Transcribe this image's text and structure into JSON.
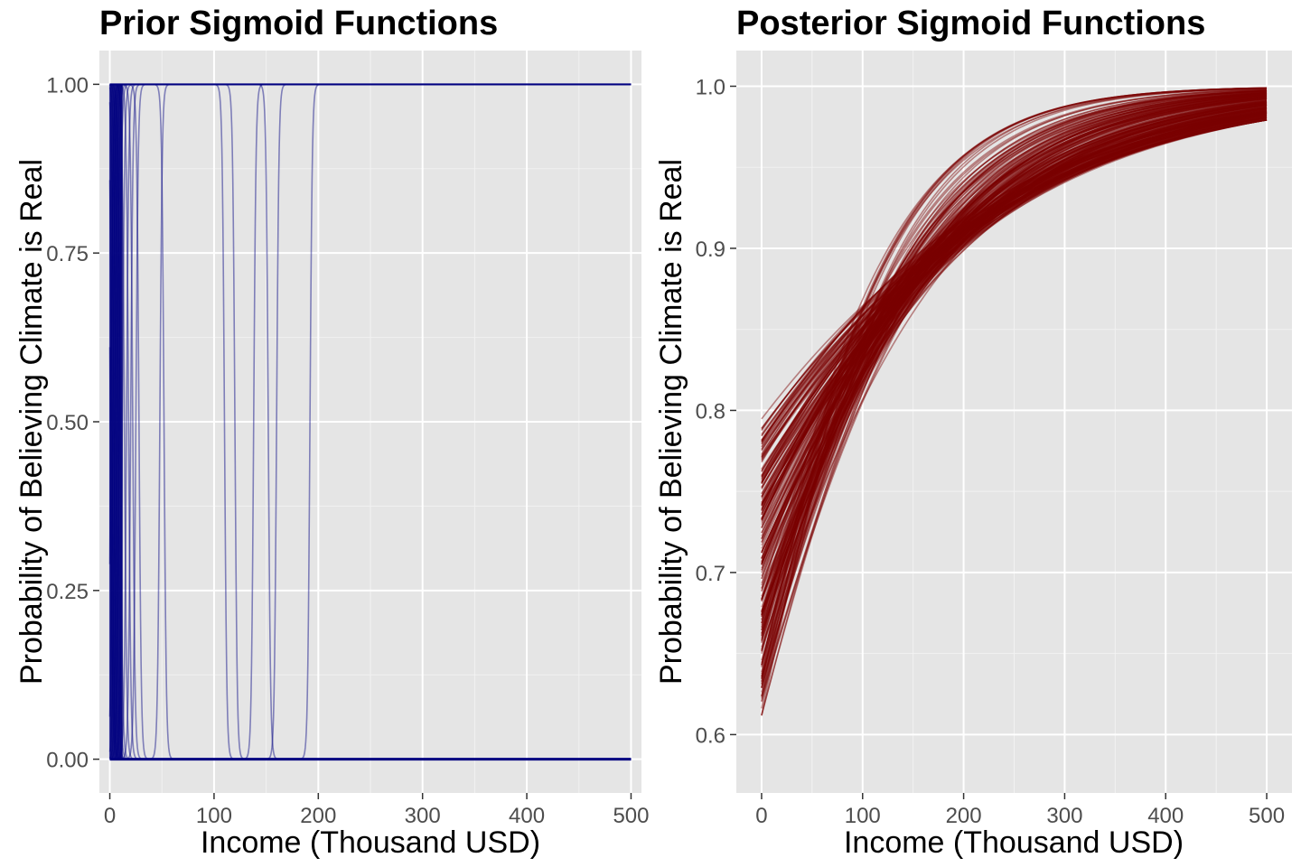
{
  "chart_data": [
    {
      "type": "line",
      "title": "Prior Sigmoid Functions",
      "xlabel": "Income (Thousand USD)",
      "ylabel": "Probability of Believing Climate is Real",
      "xlim": [
        -10,
        510
      ],
      "ylim": [
        -0.05,
        1.05
      ],
      "x_ticks": [
        0,
        100,
        200,
        300,
        400,
        500
      ],
      "x_tick_labels": [
        "0",
        "100",
        "200",
        "300",
        "400",
        "500"
      ],
      "y_ticks": [
        0,
        0.25,
        0.5,
        0.75,
        1
      ],
      "y_tick_labels": [
        "0.00",
        "0.25",
        "0.50",
        "0.75",
        "1.00"
      ],
      "grid": true,
      "line_color": "#000080",
      "panel_background": "#e5e5e5",
      "description_of_series": "Many near-step sigmoid curves over income 0-500; most transition within 0-30, a few transition near 50, 110, 120, 140, 150, 190",
      "series": [
        {
          "transition_x": 0.5,
          "direction": "down"
        },
        {
          "transition_x": 1,
          "direction": "up"
        },
        {
          "transition_x": 2,
          "direction": "down"
        },
        {
          "transition_x": 3,
          "direction": "up"
        },
        {
          "transition_x": 4,
          "direction": "down"
        },
        {
          "transition_x": 5,
          "direction": "up"
        },
        {
          "transition_x": 6,
          "direction": "down"
        },
        {
          "transition_x": 7,
          "direction": "up"
        },
        {
          "transition_x": 8,
          "direction": "down"
        },
        {
          "transition_x": 9,
          "direction": "up"
        },
        {
          "transition_x": 10,
          "direction": "down"
        },
        {
          "transition_x": 12,
          "direction": "up"
        },
        {
          "transition_x": 14,
          "direction": "down"
        },
        {
          "transition_x": 16,
          "direction": "up"
        },
        {
          "transition_x": 18,
          "direction": "down"
        },
        {
          "transition_x": 20,
          "direction": "up"
        },
        {
          "transition_x": 22,
          "direction": "down"
        },
        {
          "transition_x": 25,
          "direction": "up"
        },
        {
          "transition_x": 28,
          "direction": "down"
        },
        {
          "transition_x": 48,
          "direction": "up"
        },
        {
          "transition_x": 52,
          "direction": "down"
        },
        {
          "transition_x": 110,
          "direction": "down"
        },
        {
          "transition_x": 120,
          "direction": "down"
        },
        {
          "transition_x": 138,
          "direction": "up"
        },
        {
          "transition_x": 152,
          "direction": "down"
        },
        {
          "transition_x": 160,
          "direction": "up"
        },
        {
          "transition_x": 192,
          "direction": "up"
        }
      ]
    },
    {
      "type": "line",
      "title": "Posterior Sigmoid Functions",
      "xlabel": "Income (Thousand USD)",
      "ylabel": "Probability of Believing Climate is Real",
      "xlim": [
        -25,
        525
      ],
      "ylim": [
        0.564,
        1.022
      ],
      "x_ticks": [
        0,
        100,
        200,
        300,
        400,
        500
      ],
      "x_tick_labels": [
        "0",
        "100",
        "200",
        "300",
        "400",
        "500"
      ],
      "y_ticks": [
        0.6,
        0.7,
        0.8,
        0.9,
        1.0
      ],
      "y_tick_labels": [
        "0.6",
        "0.7",
        "0.8",
        "0.9",
        "1.0"
      ],
      "grid": true,
      "line_color": "#7a0000",
      "panel_background": "#e5e5e5",
      "description_of_series": "Hundreds of logistic curves rising from about 0.58-0.82 at income 0 to about 0.965-1.0 at income 500",
      "curve_envelope": {
        "x": [
          0,
          500
        ],
        "start_range": [
          0.583,
          0.823
        ],
        "end_range": [
          0.963,
          0.999
        ]
      }
    }
  ]
}
